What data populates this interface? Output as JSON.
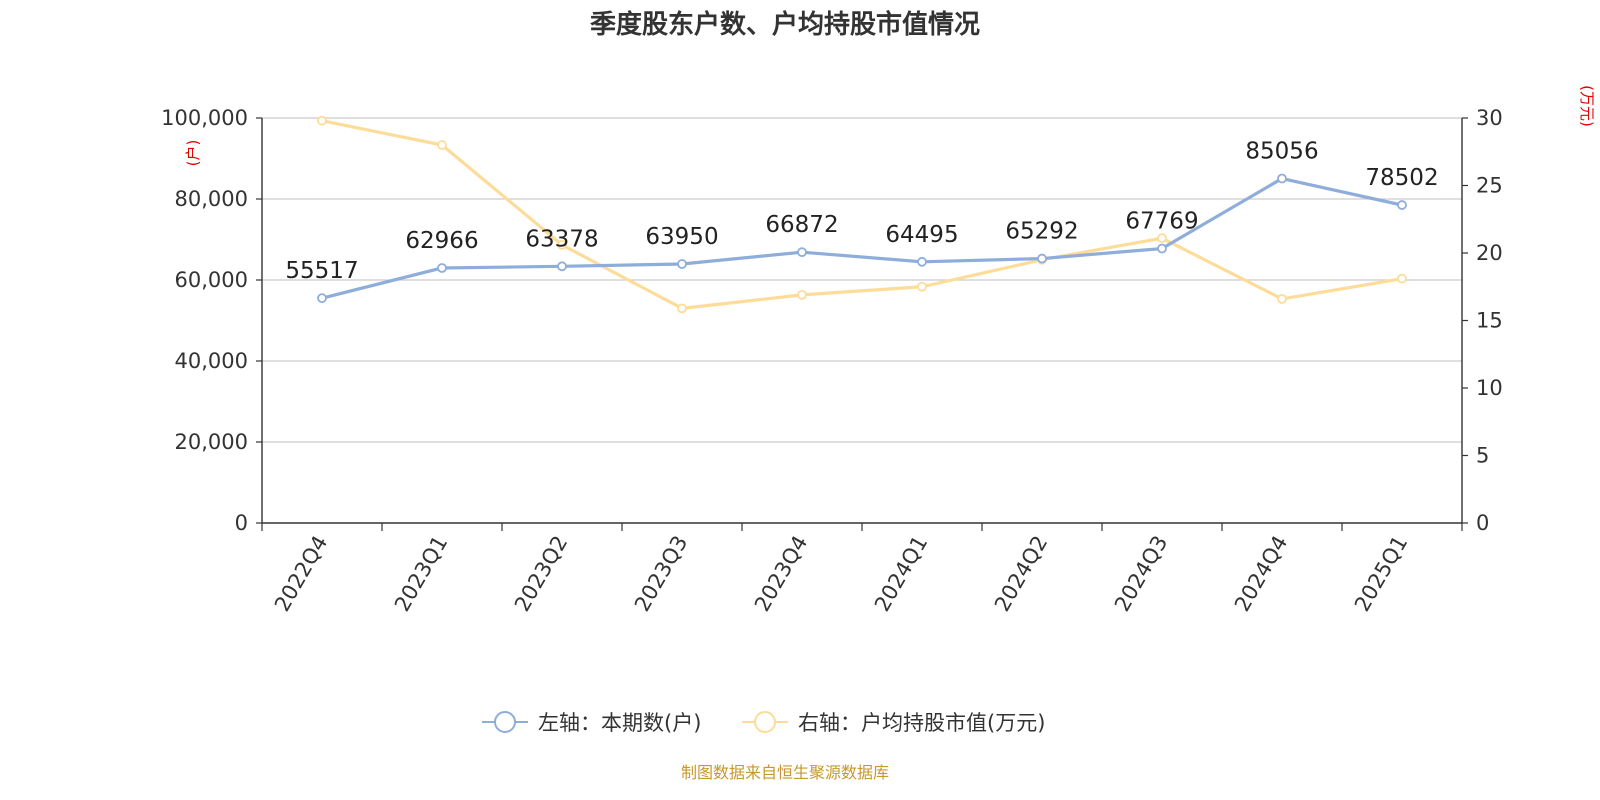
{
  "chart_data": {
    "type": "line",
    "title": "季度股东户数、户均持股市值情况",
    "categories": [
      "2022Q4",
      "2023Q1",
      "2023Q2",
      "2023Q3",
      "2023Q4",
      "2024Q1",
      "2024Q2",
      "2024Q3",
      "2024Q4",
      "2025Q1"
    ],
    "left_axis": {
      "unit_label": "(户)",
      "ylim": [
        0,
        100000
      ],
      "ticks": [
        "0",
        "20,000",
        "40,000",
        "60,000",
        "80,000",
        "100,000"
      ],
      "tick_values": [
        0,
        20000,
        40000,
        60000,
        80000,
        100000
      ]
    },
    "right_axis": {
      "unit_label": "(万元)",
      "ylim": [
        0,
        30
      ],
      "ticks": [
        "0",
        "5",
        "10",
        "15",
        "20",
        "25",
        "30"
      ],
      "tick_values": [
        0,
        5,
        10,
        15,
        20,
        25,
        30
      ]
    },
    "series": [
      {
        "name": "左轴：本期数(户)",
        "axis": "left",
        "color": "#8eadda",
        "values": [
          55517,
          62966,
          63378,
          63950,
          66872,
          64495,
          65292,
          67769,
          85056,
          78502
        ],
        "labels": [
          "55517",
          "62966",
          "63378",
          "63950",
          "66872",
          "64495",
          "65292",
          "67769",
          "85056",
          "78502"
        ]
      },
      {
        "name": "右轴：户均持股市值(万元)",
        "axis": "right",
        "color": "#fddc9a",
        "values": [
          29.8,
          28.0,
          20.6,
          15.9,
          16.9,
          17.5,
          19.5,
          21.1,
          16.6,
          18.1
        ]
      }
    ],
    "grid": true,
    "legend_position": "bottom-center",
    "source": "制图数据来自恒生聚源数据库"
  }
}
